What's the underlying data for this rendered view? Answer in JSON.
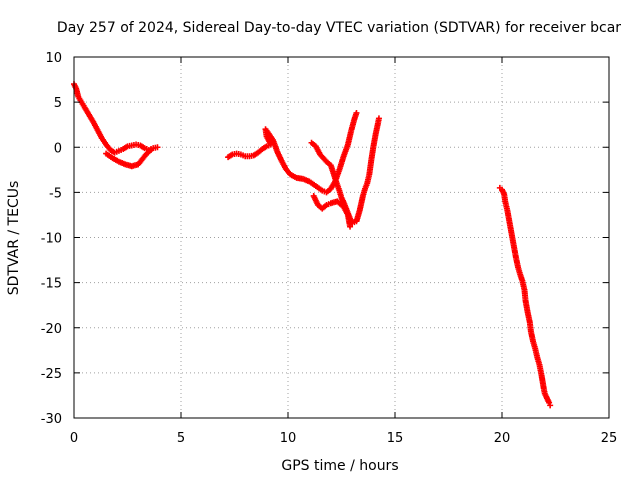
{
  "chart_data": {
    "type": "scatter",
    "title": "Day 257 of 2024, Sidereal Day-to-day VTEC variation (SDTVAR) for receiver bcar",
    "xlabel": "GPS time / hours",
    "ylabel": "SDTVAR / TECUs",
    "xlim": [
      0,
      25
    ],
    "ylim": [
      -30,
      10
    ],
    "xticks": [
      "0",
      "5",
      "10",
      "15",
      "20",
      "25"
    ],
    "yticks": [
      "10",
      "5",
      "0",
      "-5",
      "-10",
      "-15",
      "-20",
      "-25",
      "-30"
    ],
    "grid": true,
    "marker": "plus",
    "color": "#ff0000",
    "series": [
      {
        "points": [
          [
            0.0,
            7.0
          ],
          [
            0.1,
            6.5
          ],
          [
            0.2,
            5.6
          ],
          [
            0.35,
            5.0
          ],
          [
            0.5,
            4.4
          ],
          [
            0.7,
            3.6
          ],
          [
            0.9,
            2.8
          ],
          [
            1.1,
            1.9
          ],
          [
            1.3,
            1.0
          ],
          [
            1.5,
            0.3
          ],
          [
            1.7,
            -0.3
          ],
          [
            1.9,
            -0.6
          ],
          [
            2.1,
            -0.4
          ],
          [
            2.3,
            -0.2
          ],
          [
            2.5,
            0.1
          ],
          [
            2.7,
            0.2
          ],
          [
            2.9,
            0.3
          ],
          [
            3.1,
            0.2
          ],
          [
            3.3,
            -0.1
          ],
          [
            3.5,
            -0.3
          ],
          [
            3.7,
            -0.1
          ],
          [
            3.9,
            0.0
          ],
          [
            1.5,
            -0.7
          ],
          [
            1.8,
            -1.2
          ],
          [
            2.1,
            -1.6
          ],
          [
            2.4,
            -1.9
          ],
          [
            2.7,
            -2.1
          ],
          [
            3.0,
            -1.9
          ],
          [
            3.2,
            -1.3
          ],
          [
            3.4,
            -0.7
          ],
          [
            3.6,
            -0.3
          ]
        ]
      },
      {
        "points": [
          [
            7.2,
            -1.1
          ],
          [
            7.4,
            -0.8
          ],
          [
            7.6,
            -0.7
          ],
          [
            7.8,
            -0.8
          ],
          [
            8.0,
            -1.0
          ],
          [
            8.2,
            -1.0
          ],
          [
            8.4,
            -0.9
          ],
          [
            8.6,
            -0.6
          ],
          [
            8.8,
            -0.2
          ],
          [
            9.0,
            0.1
          ],
          [
            9.2,
            0.3
          ],
          [
            9.0,
            1.2
          ],
          [
            8.95,
            2.0
          ],
          [
            9.1,
            1.5
          ],
          [
            9.3,
            0.8
          ],
          [
            9.5,
            -0.5
          ],
          [
            9.7,
            -1.5
          ],
          [
            9.9,
            -2.4
          ],
          [
            10.1,
            -3.0
          ],
          [
            10.4,
            -3.4
          ],
          [
            10.7,
            -3.5
          ],
          [
            11.0,
            -3.8
          ],
          [
            11.3,
            -4.3
          ],
          [
            11.6,
            -4.8
          ],
          [
            11.8,
            -5.0
          ],
          [
            12.0,
            -4.6
          ],
          [
            12.2,
            -3.8
          ],
          [
            12.4,
            -2.5
          ],
          [
            12.6,
            -1.0
          ],
          [
            12.8,
            0.3
          ],
          [
            12.95,
            1.8
          ],
          [
            13.1,
            3.1
          ],
          [
            13.2,
            3.8
          ],
          [
            11.2,
            -5.4
          ],
          [
            11.4,
            -6.4
          ],
          [
            11.6,
            -6.8
          ],
          [
            11.8,
            -6.4
          ],
          [
            12.0,
            -6.2
          ],
          [
            12.3,
            -6.0
          ],
          [
            12.6,
            -6.6
          ],
          [
            12.8,
            -7.5
          ],
          [
            12.9,
            -8.8
          ]
        ]
      },
      {
        "points": [
          [
            11.1,
            0.5
          ],
          [
            11.3,
            0.1
          ],
          [
            11.5,
            -0.8
          ],
          [
            11.8,
            -1.6
          ],
          [
            12.0,
            -2.0
          ],
          [
            12.1,
            -2.7
          ],
          [
            12.25,
            -3.8
          ],
          [
            12.4,
            -4.8
          ],
          [
            12.5,
            -5.6
          ],
          [
            12.6,
            -6.1
          ],
          [
            12.75,
            -7.0
          ],
          [
            12.9,
            -7.9
          ],
          [
            13.0,
            -8.4
          ],
          [
            13.2,
            -8.2
          ],
          [
            13.35,
            -7.0
          ],
          [
            13.5,
            -5.4
          ],
          [
            13.6,
            -4.6
          ],
          [
            13.7,
            -4.0
          ],
          [
            13.8,
            -3.0
          ],
          [
            13.9,
            -1.3
          ],
          [
            14.0,
            0.2
          ],
          [
            14.1,
            1.5
          ],
          [
            14.2,
            2.6
          ],
          [
            14.25,
            3.2
          ]
        ]
      },
      {
        "points": [
          [
            19.9,
            -4.5
          ],
          [
            20.0,
            -4.7
          ],
          [
            20.1,
            -5.2
          ],
          [
            20.15,
            -6.0
          ],
          [
            20.25,
            -7.0
          ],
          [
            20.35,
            -8.3
          ],
          [
            20.45,
            -9.6
          ],
          [
            20.55,
            -10.9
          ],
          [
            20.65,
            -12.2
          ],
          [
            20.75,
            -13.3
          ],
          [
            20.85,
            -14.1
          ],
          [
            20.95,
            -14.8
          ],
          [
            21.05,
            -15.8
          ],
          [
            21.1,
            -17.0
          ],
          [
            21.2,
            -18.3
          ],
          [
            21.3,
            -19.4
          ],
          [
            21.35,
            -20.4
          ],
          [
            21.45,
            -21.5
          ],
          [
            21.55,
            -22.3
          ],
          [
            21.65,
            -23.3
          ],
          [
            21.75,
            -24.1
          ],
          [
            21.85,
            -25.3
          ],
          [
            21.9,
            -26.0
          ],
          [
            21.95,
            -26.7
          ],
          [
            22.0,
            -27.3
          ],
          [
            22.1,
            -27.8
          ],
          [
            22.2,
            -28.3
          ],
          [
            22.25,
            -28.6
          ]
        ]
      }
    ]
  }
}
